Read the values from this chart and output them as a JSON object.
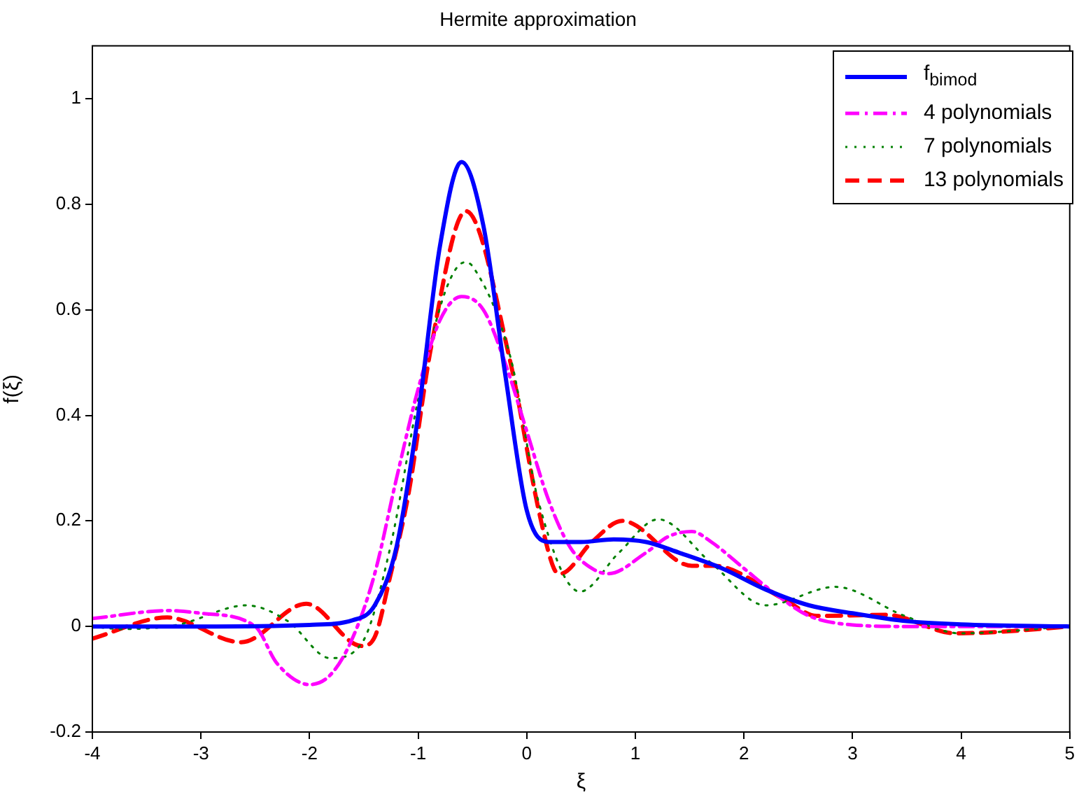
{
  "chart_data": {
    "type": "line",
    "title": "Hermite approximation",
    "xlabel": "ξ",
    "ylabel": "f(ξ)",
    "xlim": [
      -4,
      5
    ],
    "xticks": [
      -4,
      -3,
      -2,
      -1,
      0,
      1,
      2,
      3,
      4,
      5
    ],
    "ylim": [
      -0.2,
      1.1
    ],
    "yticks": [
      -0.2,
      0,
      0.2,
      0.4,
      0.6,
      0.8,
      1
    ],
    "grid": false,
    "legend": "top right",
    "marker": "none",
    "series": [
      {
        "name": "f$_{bimod}$",
        "color": "#0000ff",
        "line_style": "solid",
        "x": [
          -4,
          -3,
          -2,
          -1.6,
          -1.4,
          -1.2,
          -1,
          -0.8,
          -0.6,
          -0.4,
          -0.2,
          0,
          0.2,
          0.5,
          0.8,
          1.1,
          1.4,
          1.8,
          2.2,
          2.6,
          3,
          3.5,
          4,
          5
        ],
        "values": [
          0,
          0,
          0.003,
          0.012,
          0.04,
          0.15,
          0.4,
          0.72,
          0.88,
          0.76,
          0.48,
          0.22,
          0.16,
          0.16,
          0.165,
          0.16,
          0.14,
          0.11,
          0.07,
          0.04,
          0.025,
          0.01,
          0.004,
          0
        ]
      },
      {
        "name": "4 polynomials",
        "color": "#ff00ff",
        "line_style": "dashdot",
        "x": [
          -4,
          -3.3,
          -3,
          -2.5,
          -2.3,
          -2,
          -1.8,
          -1.6,
          -1.4,
          -1.2,
          -1,
          -0.8,
          -0.6,
          -0.4,
          -0.2,
          0,
          0.2,
          0.4,
          0.6,
          0.75,
          1.1,
          1.3,
          1.52,
          1.7,
          2,
          2.3,
          2.6,
          3,
          3.5,
          4,
          5
        ],
        "values": [
          0.015,
          0.03,
          0.025,
          0,
          -0.07,
          -0.11,
          -0.09,
          -0.02,
          0.1,
          0.28,
          0.45,
          0.58,
          0.625,
          0.6,
          0.5,
          0.37,
          0.24,
          0.15,
          0.11,
          0.1,
          0.14,
          0.17,
          0.18,
          0.16,
          0.11,
          0.06,
          0.02,
          0.003,
          0,
          0,
          0
        ]
      },
      {
        "name": "7 polynomials",
        "color": "#008000",
        "line_style": "dotted",
        "x": [
          -4,
          -3.73,
          -3.22,
          -2.58,
          -2.2,
          -1.81,
          -1.52,
          -1.26,
          -1,
          -0.75,
          -0.57,
          -0.49,
          -0.15,
          0.11,
          0.49,
          0.85,
          1.21,
          1.7,
          2.2,
          2.84,
          3.48,
          3.99,
          5
        ],
        "values": [
          0,
          -0.005,
          0.003,
          0.04,
          0.01,
          -0.06,
          -0.032,
          0.147,
          0.43,
          0.635,
          0.69,
          0.68,
          0.51,
          0.235,
          0.066,
          0.14,
          0.203,
          0.12,
          0.04,
          0.075,
          0.02,
          -0.013,
          0
        ]
      },
      {
        "name": "13 polynomials",
        "color": "#ff0000",
        "line_style": "dashed",
        "x": [
          -4,
          -3.31,
          -2.63,
          -2.03,
          -1.52,
          -1.4,
          -1.26,
          -1.09,
          -0.88,
          -0.56,
          -0.15,
          0.11,
          0.25,
          0.31,
          0.6,
          0.88,
          1.52,
          1.72,
          2.36,
          2.67,
          3.31,
          3.95,
          4.37,
          5
        ],
        "values": [
          -0.023,
          0.017,
          -0.03,
          0.043,
          -0.037,
          -0.02,
          0.093,
          0.25,
          0.53,
          0.787,
          0.5,
          0.22,
          0.11,
          0.1,
          0.16,
          0.2,
          0.115,
          0.115,
          0.053,
          0.02,
          0.022,
          -0.013,
          -0.01,
          0
        ]
      }
    ]
  }
}
